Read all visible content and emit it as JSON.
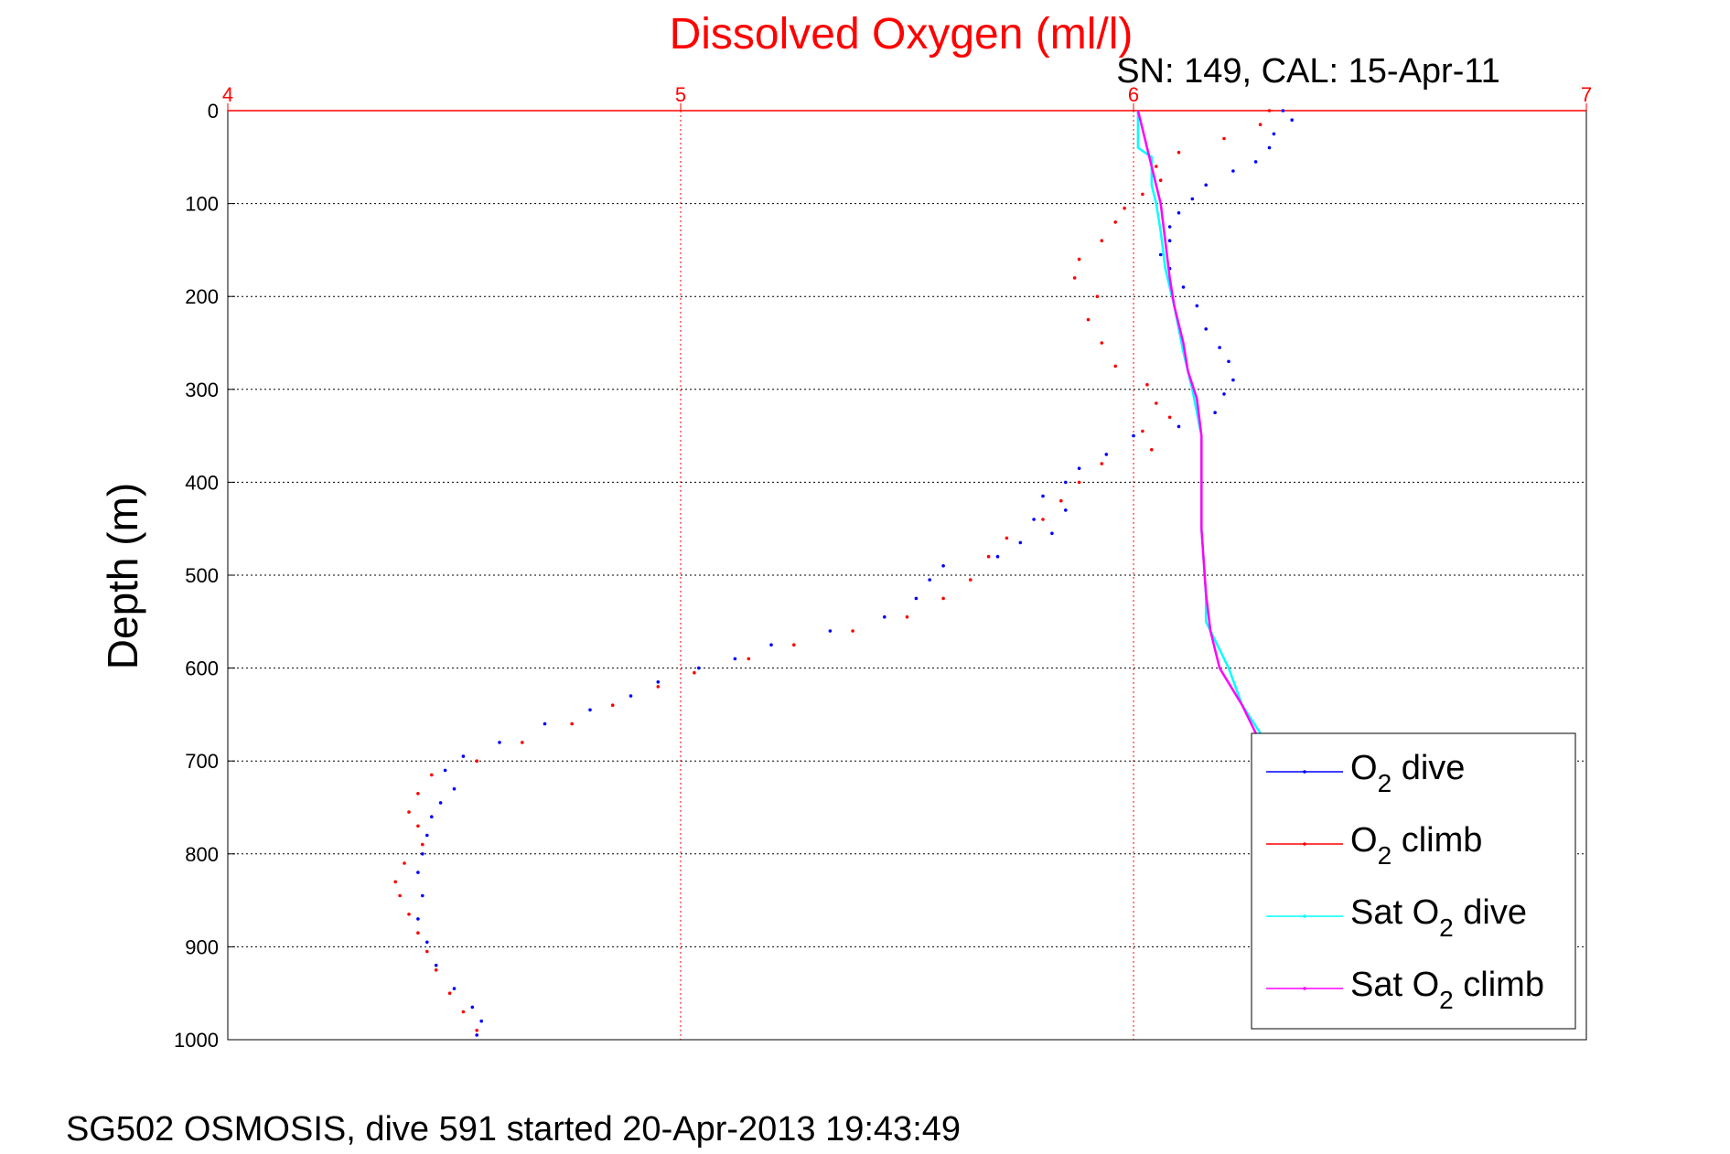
{
  "chart_data": {
    "type": "scatter",
    "title": "Dissolved Oxygen (ml/l)",
    "subtitle": "SN: 149, CAL: 15-Apr-11",
    "ylabel": "Depth (m)",
    "footer": "SG502 OSMOSIS, dive 591 started 20-Apr-2013 19:43:49",
    "xlim": [
      4,
      7
    ],
    "ylim": [
      0,
      1000
    ],
    "y_reversed": true,
    "x_axis_position": "top",
    "x_ticks": [
      4,
      5,
      6,
      7
    ],
    "y_ticks": [
      0,
      100,
      200,
      300,
      400,
      500,
      600,
      700,
      800,
      900,
      1000
    ],
    "grid": true,
    "legend_position": "bottom-right",
    "series": [
      {
        "name": "O2 dive",
        "legend_main": "O",
        "legend_sub": "2",
        "legend_pre": "",
        "legend_post": " dive",
        "color": "#0000ff",
        "style": "dots",
        "points": [
          [
            6.33,
            0
          ],
          [
            6.35,
            10
          ],
          [
            6.31,
            25
          ],
          [
            6.3,
            40
          ],
          [
            6.27,
            55
          ],
          [
            6.22,
            65
          ],
          [
            6.16,
            80
          ],
          [
            6.13,
            95
          ],
          [
            6.1,
            110
          ],
          [
            6.08,
            125
          ],
          [
            6.08,
            140
          ],
          [
            6.06,
            155
          ],
          [
            6.08,
            170
          ],
          [
            6.11,
            190
          ],
          [
            6.14,
            210
          ],
          [
            6.16,
            235
          ],
          [
            6.19,
            255
          ],
          [
            6.21,
            270
          ],
          [
            6.22,
            290
          ],
          [
            6.2,
            305
          ],
          [
            6.18,
            325
          ],
          [
            6.1,
            340
          ],
          [
            6.0,
            350
          ],
          [
            5.94,
            370
          ],
          [
            5.88,
            385
          ],
          [
            5.85,
            400
          ],
          [
            5.8,
            415
          ],
          [
            5.85,
            430
          ],
          [
            5.78,
            440
          ],
          [
            5.82,
            455
          ],
          [
            5.75,
            465
          ],
          [
            5.7,
            480
          ],
          [
            5.58,
            490
          ],
          [
            5.55,
            505
          ],
          [
            5.52,
            525
          ],
          [
            5.45,
            545
          ],
          [
            5.33,
            560
          ],
          [
            5.2,
            575
          ],
          [
            5.12,
            590
          ],
          [
            5.04,
            600
          ],
          [
            4.95,
            615
          ],
          [
            4.89,
            630
          ],
          [
            4.8,
            645
          ],
          [
            4.7,
            660
          ],
          [
            4.6,
            680
          ],
          [
            4.52,
            695
          ],
          [
            4.48,
            710
          ],
          [
            4.5,
            730
          ],
          [
            4.47,
            745
          ],
          [
            4.45,
            760
          ],
          [
            4.44,
            780
          ],
          [
            4.43,
            800
          ],
          [
            4.42,
            820
          ],
          [
            4.43,
            845
          ],
          [
            4.42,
            870
          ],
          [
            4.44,
            895
          ],
          [
            4.46,
            920
          ],
          [
            4.5,
            945
          ],
          [
            4.54,
            965
          ],
          [
            4.56,
            980
          ],
          [
            4.55,
            995
          ]
        ]
      },
      {
        "name": "O2 climb",
        "legend_main": "O",
        "legend_sub": "2",
        "legend_pre": "",
        "legend_post": " climb",
        "color": "#ff0000",
        "style": "dots",
        "points": [
          [
            6.3,
            0
          ],
          [
            6.28,
            15
          ],
          [
            6.2,
            30
          ],
          [
            6.1,
            45
          ],
          [
            6.05,
            60
          ],
          [
            6.06,
            75
          ],
          [
            6.02,
            90
          ],
          [
            5.98,
            105
          ],
          [
            5.96,
            120
          ],
          [
            5.93,
            140
          ],
          [
            5.88,
            160
          ],
          [
            5.87,
            180
          ],
          [
            5.92,
            200
          ],
          [
            5.9,
            225
          ],
          [
            5.93,
            250
          ],
          [
            5.96,
            275
          ],
          [
            6.03,
            295
          ],
          [
            6.05,
            315
          ],
          [
            6.08,
            330
          ],
          [
            6.02,
            345
          ],
          [
            6.04,
            365
          ],
          [
            5.93,
            380
          ],
          [
            5.88,
            400
          ],
          [
            5.84,
            420
          ],
          [
            5.8,
            440
          ],
          [
            5.72,
            460
          ],
          [
            5.68,
            480
          ],
          [
            5.64,
            505
          ],
          [
            5.58,
            525
          ],
          [
            5.5,
            545
          ],
          [
            5.38,
            560
          ],
          [
            5.25,
            575
          ],
          [
            5.15,
            590
          ],
          [
            5.03,
            605
          ],
          [
            4.95,
            620
          ],
          [
            4.85,
            640
          ],
          [
            4.76,
            660
          ],
          [
            4.65,
            680
          ],
          [
            4.55,
            700
          ],
          [
            4.45,
            715
          ],
          [
            4.42,
            735
          ],
          [
            4.4,
            755
          ],
          [
            4.42,
            770
          ],
          [
            4.43,
            790
          ],
          [
            4.39,
            810
          ],
          [
            4.37,
            830
          ],
          [
            4.38,
            845
          ],
          [
            4.4,
            865
          ],
          [
            4.42,
            885
          ],
          [
            4.44,
            905
          ],
          [
            4.46,
            925
          ],
          [
            4.49,
            950
          ],
          [
            4.52,
            970
          ],
          [
            4.55,
            990
          ]
        ]
      },
      {
        "name": "Sat O2 dive",
        "legend_main": "Sat O",
        "legend_sub": "2",
        "legend_pre": "",
        "legend_post": " dive",
        "color": "#00ffff",
        "style": "line",
        "points": [
          [
            6.01,
            0
          ],
          [
            6.01,
            40
          ],
          [
            6.04,
            50
          ],
          [
            6.04,
            80
          ],
          [
            6.05,
            100
          ],
          [
            6.06,
            130
          ],
          [
            6.07,
            170
          ],
          [
            6.09,
            210
          ],
          [
            6.11,
            260
          ],
          [
            6.13,
            300
          ],
          [
            6.15,
            350
          ],
          [
            6.15,
            450
          ],
          [
            6.16,
            520
          ],
          [
            6.16,
            550
          ],
          [
            6.21,
            600
          ],
          [
            6.24,
            640
          ],
          [
            6.28,
            670
          ],
          [
            6.31,
            690
          ]
        ]
      },
      {
        "name": "Sat O2 climb",
        "legend_main": "Sat O",
        "legend_sub": "2",
        "legend_pre": "",
        "legend_post": " climb",
        "color": "#ff00ff",
        "style": "line",
        "points": [
          [
            6.01,
            0
          ],
          [
            6.02,
            20
          ],
          [
            6.04,
            60
          ],
          [
            6.06,
            100
          ],
          [
            6.07,
            140
          ],
          [
            6.08,
            180
          ],
          [
            6.09,
            210
          ],
          [
            6.11,
            250
          ],
          [
            6.12,
            280
          ],
          [
            6.14,
            310
          ],
          [
            6.15,
            350
          ],
          [
            6.15,
            450
          ],
          [
            6.16,
            520
          ],
          [
            6.17,
            560
          ],
          [
            6.19,
            600
          ],
          [
            6.24,
            640
          ],
          [
            6.27,
            670
          ],
          [
            6.3,
            690
          ]
        ]
      }
    ]
  }
}
